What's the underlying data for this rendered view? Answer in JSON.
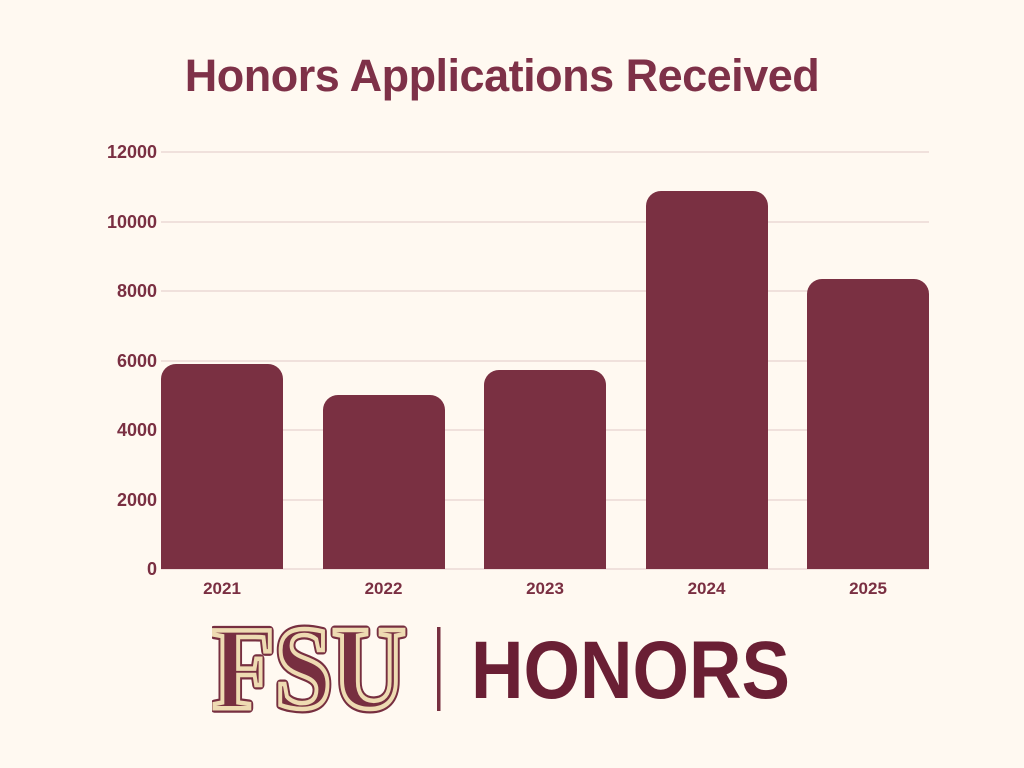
{
  "page": {
    "background_color": "#FFF9F1"
  },
  "chart_data": {
    "type": "bar",
    "title": "Honors Applications Received",
    "categories": [
      "2021",
      "2022",
      "2023",
      "2024",
      "2025"
    ],
    "values": [
      5890,
      5000,
      5720,
      10870,
      8350
    ],
    "xlabel": "",
    "ylabel": "",
    "ylim": [
      0,
      12000
    ],
    "yticks": [
      0,
      2000,
      4000,
      6000,
      8000,
      10000,
      12000
    ],
    "grid": "horizontal",
    "legend": "none",
    "bar_color": "#7A3042",
    "title_color": "#7E3148",
    "axis_label_color": "#7A2F42",
    "gridline_color": "#F0E1DC"
  },
  "logo": {
    "fsu_text": "FSU",
    "honors_text": "HONORS",
    "fsu_outline_color": "#772F40",
    "fsu_inline_color": "#EEDBB2",
    "divider_color": "#772F40",
    "honors_color": "#6A1F34"
  }
}
